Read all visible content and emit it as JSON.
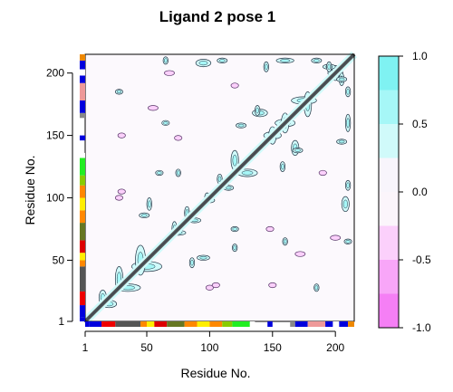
{
  "chart_data": {
    "type": "heatmap",
    "title": "Ligand 2 pose 1",
    "xlabel": "Residue No.",
    "ylabel": "Residue No.",
    "xlim": [
      1,
      215
    ],
    "ylim": [
      1,
      215
    ],
    "x_ticks": [
      1,
      50,
      100,
      150,
      200
    ],
    "y_ticks": [
      1,
      50,
      100,
      150,
      200
    ],
    "colorbar": {
      "range": [
        -1.0,
        1.0
      ],
      "ticks": [
        "1.0",
        "0.5",
        "0.0",
        "-0.5",
        "-1.0"
      ],
      "tick_values": [
        1.0,
        0.5,
        0.0,
        -0.5,
        -1.0
      ],
      "levels": [
        {
          "from": 0.75,
          "to": 1.0,
          "color": "#7ff2f2"
        },
        {
          "from": 0.5,
          "to": 0.75,
          "color": "#a6f7f7"
        },
        {
          "from": 0.25,
          "to": 0.5,
          "color": "#d0fafa"
        },
        {
          "from": 0.0,
          "to": 0.25,
          "color": "#f8f5fc"
        },
        {
          "from": -0.25,
          "to": 0.0,
          "color": "#fbf5fb"
        },
        {
          "from": -0.5,
          "to": -0.25,
          "color": "#fbd0fb"
        },
        {
          "from": -0.75,
          "to": -0.5,
          "color": "#f8a6f8"
        },
        {
          "from": -1.0,
          "to": -0.75,
          "color": "#f57ff5"
        }
      ]
    },
    "diagonal_band": {
      "from": 1,
      "to": 215,
      "color": "#555555"
    },
    "positive_regions": [
      {
        "x": 20,
        "y": 15,
        "rx": 6,
        "ry": 3
      },
      {
        "x": 35,
        "y": 28,
        "rx": 10,
        "ry": 3
      },
      {
        "x": 50,
        "y": 45,
        "rx": 12,
        "ry": 4
      },
      {
        "x": 75,
        "y": 72,
        "rx": 6,
        "ry": 2
      },
      {
        "x": 88,
        "y": 82,
        "rx": 5,
        "ry": 2
      },
      {
        "x": 100,
        "y": 98,
        "rx": 4,
        "ry": 2
      },
      {
        "x": 115,
        "y": 108,
        "rx": 4,
        "ry": 2
      },
      {
        "x": 130,
        "y": 120,
        "rx": 8,
        "ry": 3
      },
      {
        "x": 150,
        "y": 150,
        "rx": 7,
        "ry": 3
      },
      {
        "x": 160,
        "y": 160,
        "rx": 8,
        "ry": 3
      },
      {
        "x": 175,
        "y": 178,
        "rx": 10,
        "ry": 3
      },
      {
        "x": 200,
        "y": 200,
        "rx": 6,
        "ry": 3
      },
      {
        "x": 140,
        "y": 168,
        "rx": 6,
        "ry": 3
      },
      {
        "x": 125,
        "y": 158,
        "rx": 4,
        "ry": 2
      },
      {
        "x": 170,
        "y": 138,
        "rx": 4,
        "ry": 2
      },
      {
        "x": 195,
        "y": 205,
        "rx": 5,
        "ry": 2
      },
      {
        "x": 205,
        "y": 195,
        "rx": 4,
        "ry": 2
      },
      {
        "x": 95,
        "y": 208,
        "rx": 6,
        "ry": 3
      },
      {
        "x": 110,
        "y": 210,
        "rx": 4,
        "ry": 2
      },
      {
        "x": 160,
        "y": 210,
        "rx": 7,
        "ry": 2
      },
      {
        "x": 185,
        "y": 210,
        "rx": 4,
        "ry": 2
      },
      {
        "x": 48,
        "y": 86,
        "rx": 4,
        "ry": 2
      },
      {
        "x": 95,
        "y": 52,
        "rx": 5,
        "ry": 2
      },
      {
        "x": 28,
        "y": 185,
        "rx": 3,
        "ry": 2
      },
      {
        "x": 205,
        "y": 145,
        "rx": 4,
        "ry": 2
      },
      {
        "x": 65,
        "y": 160,
        "rx": 3,
        "ry": 2
      },
      {
        "x": 210,
        "y": 65,
        "rx": 3,
        "ry": 2
      },
      {
        "x": 120,
        "y": 75,
        "rx": 3,
        "ry": 2
      },
      {
        "x": 60,
        "y": 120,
        "rx": 3,
        "ry": 2
      }
    ],
    "negative_regions": [
      {
        "x": 55,
        "y": 172,
        "rx": 4,
        "ry": 2
      },
      {
        "x": 120,
        "y": 190,
        "rx": 3,
        "ry": 2
      },
      {
        "x": 200,
        "y": 68,
        "rx": 4,
        "ry": 2
      },
      {
        "x": 100,
        "y": 28,
        "rx": 3,
        "ry": 2
      },
      {
        "x": 75,
        "y": 148,
        "rx": 3,
        "ry": 2
      },
      {
        "x": 150,
        "y": 30,
        "rx": 3,
        "ry": 2
      },
      {
        "x": 30,
        "y": 105,
        "rx": 3,
        "ry": 2
      }
    ],
    "secondary_structure_bar": [
      {
        "from": 1,
        "to": 4,
        "color": "#0000dd"
      },
      {
        "from": 4,
        "to": 14,
        "color": "#0000dd"
      },
      {
        "from": 14,
        "to": 25,
        "color": "#ee0000"
      },
      {
        "from": 25,
        "to": 45,
        "color": "#555555"
      },
      {
        "from": 45,
        "to": 50,
        "color": "#ff8800"
      },
      {
        "from": 50,
        "to": 56,
        "color": "#ffee00"
      },
      {
        "from": 56,
        "to": 66,
        "color": "#dd0000"
      },
      {
        "from": 66,
        "to": 80,
        "color": "#667722"
      },
      {
        "from": 80,
        "to": 90,
        "color": "#ff8800"
      },
      {
        "from": 90,
        "to": 100,
        "color": "#ffee00"
      },
      {
        "from": 100,
        "to": 110,
        "color": "#ff8800"
      },
      {
        "from": 110,
        "to": 118,
        "color": "#88cc00"
      },
      {
        "from": 118,
        "to": 132,
        "color": "#22ee22"
      },
      {
        "from": 132,
        "to": 136,
        "color": "#ffffff"
      },
      {
        "from": 146,
        "to": 150,
        "color": "#0000dd"
      },
      {
        "from": 164,
        "to": 168,
        "color": "#888888"
      },
      {
        "from": 168,
        "to": 178,
        "color": "#0000dd"
      },
      {
        "from": 178,
        "to": 192,
        "color": "#ee9999"
      },
      {
        "from": 192,
        "to": 198,
        "color": "#0000dd"
      },
      {
        "from": 198,
        "to": 203,
        "color": "#ffffff"
      },
      {
        "from": 203,
        "to": 210,
        "color": "#0000dd"
      },
      {
        "from": 210,
        "to": 215,
        "color": "#ee8800"
      }
    ]
  }
}
